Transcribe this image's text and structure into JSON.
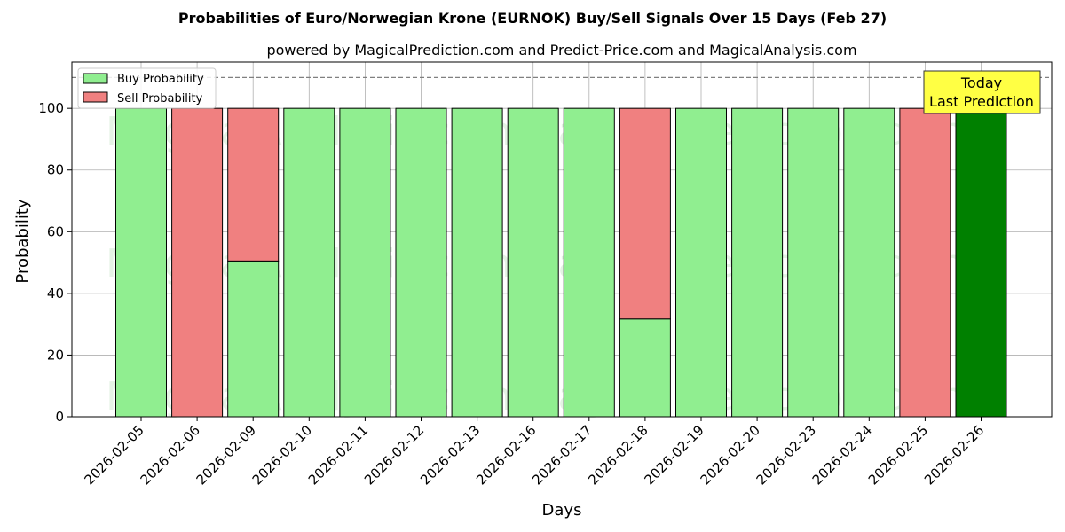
{
  "chart_data": {
    "type": "bar",
    "title": "Probabilities of Euro/Norwegian Krone (EURNOK) Buy/Sell Signals Over 15 Days (Feb 27)",
    "subtitle": "powered by MagicalPrediction.com and Predict-Price.com and MagicalAnalysis.com",
    "xlabel": "Days",
    "ylabel": "Probability",
    "ylim": [
      0,
      115
    ],
    "yticks": [
      0,
      20,
      40,
      60,
      80,
      100
    ],
    "grid": true,
    "legend_position": "top-left",
    "reference_line": 110,
    "categories": [
      "2026-02-05",
      "2026-02-06",
      "2026-02-09",
      "2026-02-10",
      "2026-02-11",
      "2026-02-12",
      "2026-02-13",
      "2026-02-16",
      "2026-02-17",
      "2026-02-18",
      "2026-02-19",
      "2026-02-20",
      "2026-02-23",
      "2026-02-24",
      "2026-02-25",
      "2026-02-26"
    ],
    "series": [
      {
        "name": "Buy Probability",
        "color": "#90ee90",
        "values": [
          100,
          0,
          50.5,
          100,
          100,
          100,
          100,
          100,
          100,
          31.7,
          100,
          100,
          100,
          100,
          0,
          100
        ]
      },
      {
        "name": "Sell Probability",
        "color": "#f08080",
        "values": [
          0,
          100,
          49.5,
          0,
          0,
          0,
          0,
          0,
          0,
          68.3,
          0,
          0,
          0,
          0,
          100,
          0
        ]
      }
    ],
    "highlight": {
      "category": "2026-02-26",
      "color": "#008000"
    },
    "annotation": {
      "lines": [
        "Today",
        "Last Prediction"
      ],
      "background": "#ffff44"
    },
    "watermarks": [
      "MagicalAnalysis.com",
      "MagicalPrediction.com"
    ]
  }
}
